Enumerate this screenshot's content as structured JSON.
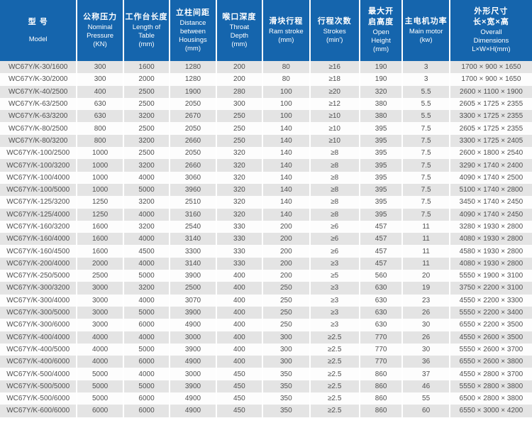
{
  "table": {
    "columns": [
      {
        "key": "model",
        "cn": "型 号",
        "en": "Model"
      },
      {
        "key": "nominal_pressure",
        "cn": "公称压力",
        "en": "Nominal\nPressure\n(KN)"
      },
      {
        "key": "table_length",
        "cn": "工作台长度",
        "en": "Length of\nTable\n(mm)"
      },
      {
        "key": "housing_distance",
        "cn": "立柱间距",
        "en": "Distance\nbetween\nHousings\n(mm)"
      },
      {
        "key": "throat_depth",
        "cn": "喉口深度",
        "en": "Throat\nDepth\n(mm)"
      },
      {
        "key": "ram_stroke",
        "cn": "滑块行程",
        "en": "Ram stroke\n(mm)"
      },
      {
        "key": "strokes",
        "cn": "行程次数",
        "en": "Strokes\n(min')"
      },
      {
        "key": "open_height",
        "cn": "最大开\n启高度",
        "en": "Open\nHeight\n(mm)"
      },
      {
        "key": "main_motor",
        "cn": "主电机功率",
        "en": "Main motor\n(kw)"
      },
      {
        "key": "overall_dimensions",
        "cn": "外形尺寸\n长×宽×高",
        "en": "Overall\nDimensions\nL×W×H(mm)"
      }
    ],
    "rows": [
      [
        "WC67Y/K-30/1600",
        "300",
        "1600",
        "1280",
        "200",
        "80",
        "≥16",
        "190",
        "3",
        "1700 × 900 × 1650"
      ],
      [
        "WC67Y/K-30/2000",
        "300",
        "2000",
        "1280",
        "200",
        "80",
        "≥18",
        "190",
        "3",
        "1700 × 900 × 1650"
      ],
      [
        "WC67Y/K-40/2500",
        "400",
        "2500",
        "1900",
        "280",
        "100",
        "≥20",
        "320",
        "5.5",
        "2600 × 1100 × 1900"
      ],
      [
        "WC67Y/K-63/2500",
        "630",
        "2500",
        "2050",
        "300",
        "100",
        "≥12",
        "380",
        "5.5",
        "2605 × 1725 × 2355"
      ],
      [
        "WC67Y/K-63/3200",
        "630",
        "3200",
        "2670",
        "250",
        "100",
        "≥10",
        "380",
        "5.5",
        "3300 × 1725 × 2355"
      ],
      [
        "WC67Y/K-80/2500",
        "800",
        "2500",
        "2050",
        "250",
        "140",
        "≥10",
        "395",
        "7.5",
        "2605 × 1725 × 2355"
      ],
      [
        "WC67Y/K-80/3200",
        "800",
        "3200",
        "2660",
        "250",
        "140",
        "≥10",
        "395",
        "7.5",
        "3300 × 1725 × 2405"
      ],
      [
        "WC67Y/K-100/2500",
        "1000",
        "2500",
        "2050",
        "320",
        "140",
        "≥8",
        "395",
        "7.5",
        "2600 × 1800 × 2540"
      ],
      [
        "WC67Y/K-100/3200",
        "1000",
        "3200",
        "2660",
        "320",
        "140",
        "≥8",
        "395",
        "7.5",
        "3290 × 1740 × 2400"
      ],
      [
        "WC67Y/K-100/4000",
        "1000",
        "4000",
        "3060",
        "320",
        "140",
        "≥8",
        "395",
        "7.5",
        "4090 × 1740 × 2500"
      ],
      [
        "WC67Y/K-100/5000",
        "1000",
        "5000",
        "3960",
        "320",
        "140",
        "≥8",
        "395",
        "7.5",
        "5100 × 1740 × 2800"
      ],
      [
        "WC67Y/K-125/3200",
        "1250",
        "3200",
        "2510",
        "320",
        "140",
        "≥8",
        "395",
        "7.5",
        "3450 × 1740 × 2450"
      ],
      [
        "WC67Y/K-125/4000",
        "1250",
        "4000",
        "3160",
        "320",
        "140",
        "≥8",
        "395",
        "7.5",
        "4090 × 1740 × 2450"
      ],
      [
        "WC67Y/K-160/3200",
        "1600",
        "3200",
        "2540",
        "330",
        "200",
        "≥6",
        "457",
        "11",
        "3280 × 1930 × 2800"
      ],
      [
        "WC67Y/K-160/4000",
        "1600",
        "4000",
        "3140",
        "330",
        "200",
        "≥6",
        "457",
        "11",
        "4080 × 1930 × 2800"
      ],
      [
        "WC67Y/K-160/4500",
        "1600",
        "4500",
        "3300",
        "330",
        "200",
        "≥6",
        "457",
        "11",
        "4580 × 1930 × 2800"
      ],
      [
        "WC67Y/K-200/4000",
        "2000",
        "4000",
        "3140",
        "330",
        "200",
        "≥3",
        "457",
        "11",
        "4080 × 1930 × 2800"
      ],
      [
        "WC67Y/K-250/5000",
        "2500",
        "5000",
        "3900",
        "400",
        "200",
        "≥5",
        "560",
        "20",
        "5550 × 1900 × 3100"
      ],
      [
        "WC67Y/K-300/3200",
        "3000",
        "3200",
        "2500",
        "400",
        "250",
        "≥3",
        "630",
        "19",
        "3750 × 2200 × 3100"
      ],
      [
        "WC67Y/K-300/4000",
        "3000",
        "4000",
        "3070",
        "400",
        "250",
        "≥3",
        "630",
        "23",
        "4550 × 2200 × 3300"
      ],
      [
        "WC67Y/K-300/5000",
        "3000",
        "5000",
        "3900",
        "400",
        "250",
        "≥3",
        "630",
        "26",
        "5550 × 2200 × 3400"
      ],
      [
        "WC67Y/K-300/6000",
        "3000",
        "6000",
        "4900",
        "400",
        "250",
        "≥3",
        "630",
        "30",
        "6550 × 2200 × 3500"
      ],
      [
        "WC67Y/K-400/4000",
        "4000",
        "4000",
        "3000",
        "400",
        "300",
        "≥2.5",
        "770",
        "26",
        "4550 × 2600 × 3500"
      ],
      [
        "WC67Y/K-400/5000",
        "4000",
        "5000",
        "3900",
        "400",
        "300",
        "≥2.5",
        "770",
        "30",
        "5550 × 2600 × 3700"
      ],
      [
        "WC67Y/K-400/6000",
        "4000",
        "6000",
        "4900",
        "400",
        "300",
        "≥2.5",
        "770",
        "36",
        "6550 × 2600 × 3800"
      ],
      [
        "WC67Y/K-500/4000",
        "5000",
        "4000",
        "3000",
        "450",
        "350",
        "≥2.5",
        "860",
        "37",
        "4550 × 2800 × 3700"
      ],
      [
        "WC67Y/K-500/5000",
        "5000",
        "5000",
        "3900",
        "450",
        "350",
        "≥2.5",
        "860",
        "46",
        "5550 × 2800 × 3800"
      ],
      [
        "WC67Y/K-500/6000",
        "5000",
        "6000",
        "4900",
        "450",
        "350",
        "≥2.5",
        "860",
        "55",
        "6500 × 2800 × 3800"
      ],
      [
        "WC67Y/K-600/6000",
        "6000",
        "6000",
        "4900",
        "450",
        "350",
        "≥2.5",
        "860",
        "60",
        "6550 × 3000 × 4200"
      ]
    ]
  },
  "colors": {
    "header_bg": "#1565ad",
    "header_text": "#ffffff",
    "row_alt_bg": "#e4e4e4",
    "row_bg": "#fdfdfd",
    "body_text": "#4f4f4f"
  }
}
